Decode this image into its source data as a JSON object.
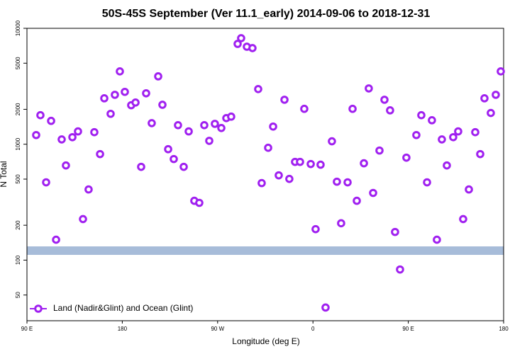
{
  "chart_data": {
    "type": "scatter",
    "title": "50S-45S September (Ver 11.1_early)   2014-09-06 to 2018-12-31",
    "x_label": "Longitude (deg E)",
    "y_label": "N Total",
    "log_y": true,
    "legend_position": "bottom-left",
    "xlim": [
      90,
      540
    ],
    "xticks": [
      {
        "value": 90,
        "label": "90 E"
      },
      {
        "value": 180,
        "label": "180"
      },
      {
        "value": 270,
        "label": "90 W"
      },
      {
        "value": 360,
        "label": "0"
      },
      {
        "value": 450,
        "label": "90 E"
      },
      {
        "value": 540,
        "label": "180"
      }
    ],
    "ylim": [
      30,
      10000
    ],
    "yticks": [
      50,
      100,
      200,
      500,
      1000,
      2000,
      5000,
      10000
    ],
    "series": [
      {
        "name": "Land (Nadir&Glint) and Ocean (Glint)",
        "color": "#a020f0",
        "x": [
          98.7,
          102.7,
          108.1,
          112.8,
          117.5,
          122.8,
          126.8,
          132.9,
          138.2,
          142.9,
          148.2,
          153.6,
          159,
          163,
          169,
          173,
          177.7,
          182.4,
          188.4,
          192.5,
          197.8,
          202.5,
          207.8,
          213.9,
          217.9,
          223.3,
          228.6,
          232.6,
          238,
          242.7,
          248,
          252.7,
          257.4,
          262.1,
          267.4,
          273.5,
          278.2,
          282.8,
          288.9,
          292.2,
          297.6,
          302.9,
          308.3,
          311.6,
          317.7,
          322.4,
          327.7,
          333.1,
          337.7,
          343.1,
          347.8,
          351.8,
          357.9,
          362.5,
          367.2,
          371.9,
          377.9,
          382.6,
          386.6,
          392.7,
          397.4,
          401.4,
          408.1,
          412.7,
          416.8,
          422.8,
          427.5,
          432.8,
          437.5,
          442.2,
          448.2,
          457.6,
          462.3,
          467.7,
          472.3,
          477,
          481.7,
          486.4,
          492.4,
          497.1,
          501.8,
          507.2,
          513.2,
          517.9,
          521.9,
          527.9,
          532.6,
          537.3
        ],
        "values": [
          1200,
          1780,
          469,
          1590,
          150,
          1100,
          656,
          1150,
          1290,
          226,
          407,
          1270,
          822,
          2490,
          1830,
          2670,
          4250,
          2830,
          2170,
          2290,
          638,
          2750,
          1520,
          3850,
          2190,
          906,
          745,
          1460,
          638,
          1290,
          325,
          312,
          1460,
          1070,
          1500,
          1380,
          1680,
          1730,
          7340,
          8220,
          6940,
          6750,
          2990,
          462,
          932,
          1420,
          539,
          2420,
          502,
          704,
          704,
          2020,
          675,
          185,
          666,
          39,
          1060,
          475,
          208,
          469,
          2020,
          325,
          685,
          3030,
          380,
          882,
          2420,
          1960,
          175,
          83,
          766,
          1200,
          1780,
          469,
          1610,
          150,
          1100,
          656,
          1150,
          1290,
          226,
          407,
          1270,
          822,
          2490,
          1860,
          2670,
          4250
        ]
      }
    ]
  }
}
